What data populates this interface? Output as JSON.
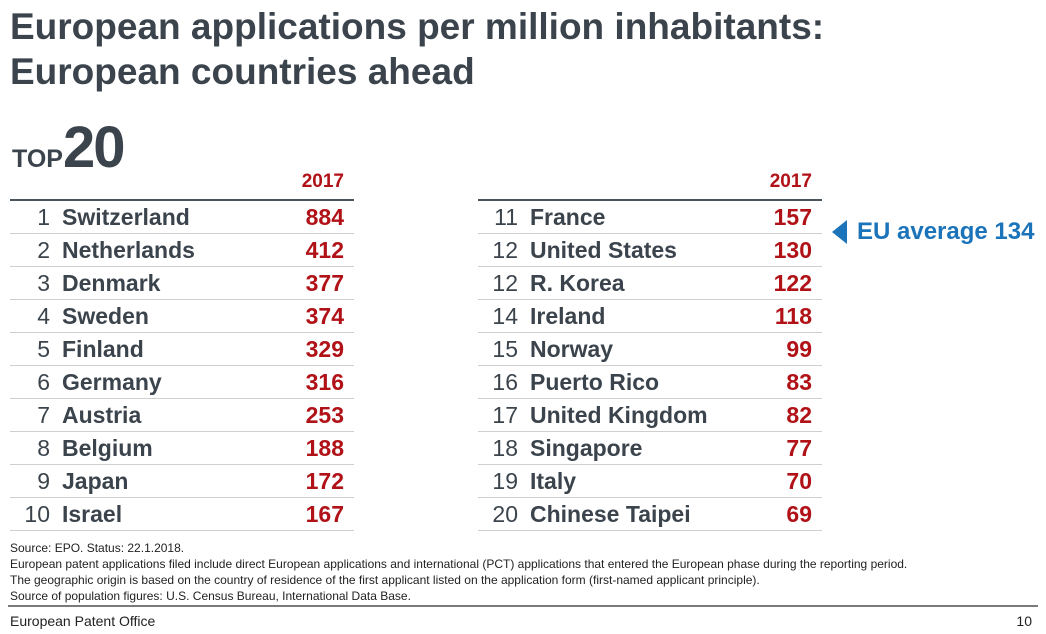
{
  "title": {
    "line1": "European applications per million inhabitants:",
    "line2": "European countries ahead"
  },
  "top": {
    "prefix": "TOP",
    "number": "20"
  },
  "year": "2017",
  "left": [
    {
      "rank": "1",
      "name": "Switzerland",
      "value": "884"
    },
    {
      "rank": "2",
      "name": "Netherlands",
      "value": "412"
    },
    {
      "rank": "3",
      "name": "Denmark",
      "value": "377"
    },
    {
      "rank": "4",
      "name": "Sweden",
      "value": "374"
    },
    {
      "rank": "5",
      "name": "Finland",
      "value": "329"
    },
    {
      "rank": "6",
      "name": "Germany",
      "value": "316"
    },
    {
      "rank": "7",
      "name": "Austria",
      "value": "253"
    },
    {
      "rank": "8",
      "name": "Belgium",
      "value": "188"
    },
    {
      "rank": "9",
      "name": "Japan",
      "value": "172"
    },
    {
      "rank": "10",
      "name": "Israel",
      "value": "167"
    }
  ],
  "right": [
    {
      "rank": "11",
      "name": "France",
      "value": "157"
    },
    {
      "rank": "12",
      "name": "United States",
      "value": "130"
    },
    {
      "rank": "12",
      "name": "R. Korea",
      "value": "122"
    },
    {
      "rank": "14",
      "name": "Ireland",
      "value": "118"
    },
    {
      "rank": "15",
      "name": "Norway",
      "value": "99"
    },
    {
      "rank": "16",
      "name": "Puerto Rico",
      "value": "83"
    },
    {
      "rank": "17",
      "name": "United Kingdom",
      "value": "82"
    },
    {
      "rank": "18",
      "name": "Singapore",
      "value": "77"
    },
    {
      "rank": "19",
      "name": "Italy",
      "value": "70"
    },
    {
      "rank": "20",
      "name": "Chinese Taipei",
      "value": "69"
    }
  ],
  "eu_average": "EU average 134",
  "notes": [
    "Source: EPO. Status: 22.1.2018.",
    "European patent applications filed include direct European applications and international (PCT) applications that entered the European phase during the reporting period.",
    "The geographic origin is based on the country of residence of the first applicant listed on the application form (first-named applicant principle).",
    "Source of population figures: U.S. Census Bureau, International Data Base."
  ],
  "footer": {
    "org": "European Patent Office",
    "page": "10"
  },
  "colors": {
    "value": "#b01217",
    "accent": "#1b73ba",
    "text": "#3b444c"
  }
}
